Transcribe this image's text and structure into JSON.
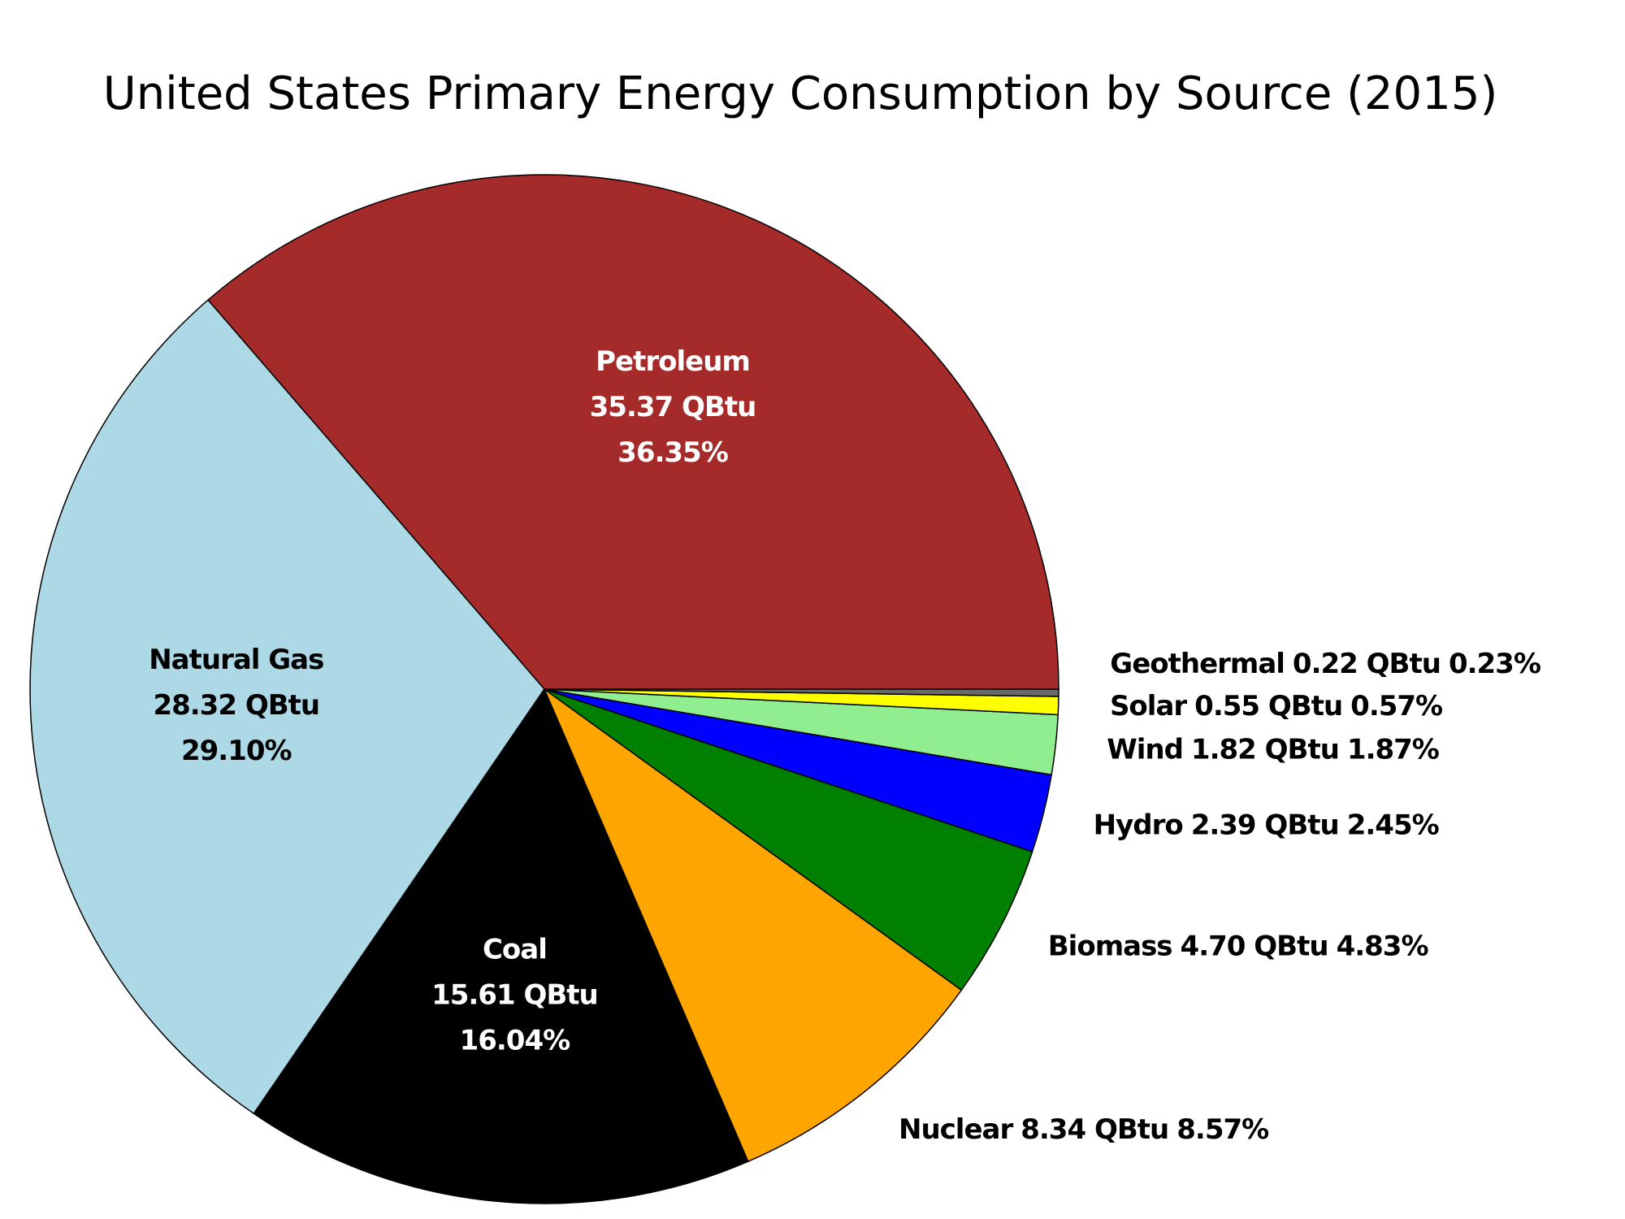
{
  "chart_data": {
    "type": "pie",
    "title": "United States Primary Energy Consumption by Source (2015)",
    "categories": [
      "Petroleum",
      "Natural Gas",
      "Coal",
      "Nuclear",
      "Biomass",
      "Hydro",
      "Wind",
      "Solar",
      "Geothermal"
    ],
    "values": [
      35.37,
      28.32,
      15.61,
      8.34,
      4.7,
      2.39,
      1.82,
      0.55,
      0.22
    ],
    "value_labels": [
      "35.37 QBtu",
      "28.32 QBtu",
      "15.61 QBtu",
      "8.34 QBtu",
      "4.70 QBtu",
      "2.39 QBtu",
      "1.82 QBtu",
      "0.55 QBtu",
      "0.22 QBtu"
    ],
    "percent_labels": [
      "36.35%",
      "29.10%",
      "16.04%",
      "8.57%",
      "4.83%",
      "2.45%",
      "1.87%",
      "0.57%",
      "0.23%"
    ],
    "colors": [
      "#a52a2a",
      "#add8e6",
      "#000000",
      "#ffa500",
      "#008000",
      "#0000ff",
      "#90ee90",
      "#ffff00",
      "#696969"
    ]
  }
}
